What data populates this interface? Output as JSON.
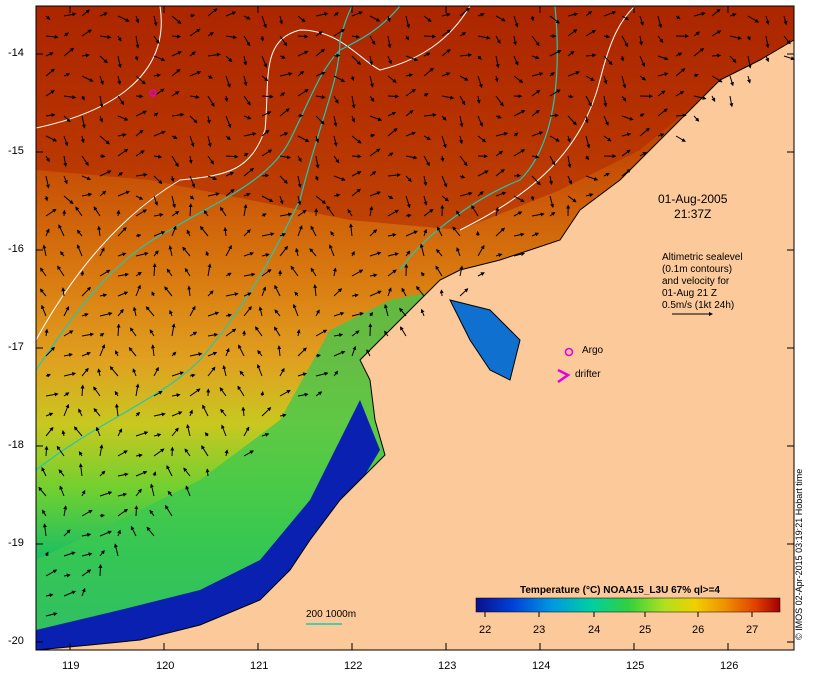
{
  "map": {
    "lon_ticks": [
      "119",
      "120",
      "121",
      "122",
      "123",
      "124",
      "125",
      "126"
    ],
    "lat_ticks": [
      "-14",
      "-15",
      "-16",
      "-17",
      "-18",
      "-19",
      "-20"
    ],
    "timestamp_line1": "01-Aug-2005",
    "timestamp_line2": "21:37Z",
    "altimetry_note": [
      "Altimetric sealevel",
      "(0.1m contours)",
      "and velocity for",
      "01-Aug 21 Z",
      "0.5m/s (1kt 24h)"
    ],
    "argo_label": "Argo",
    "drifter_label": "drifter",
    "contour_label": "200  1000m",
    "colorbar": {
      "title": "Temperature (°C) NOAA15_L3U 67% ql>=4",
      "ticks": [
        "22",
        "23",
        "24",
        "25",
        "26",
        "27"
      ],
      "colors": [
        "#0a0f8c",
        "#0040d8",
        "#0098e0",
        "#00d0a0",
        "#30d040",
        "#b0e020",
        "#f0d000",
        "#f09000",
        "#e04000",
        "#a00000"
      ]
    },
    "credit": "© IMOS 02-Apr-2015 03:19:21 Hobart time",
    "colors": {
      "land": "#fbc99a",
      "sst_warm": "#a83000",
      "sst_mid": "#d06010",
      "contour_200": "#20c8b0",
      "contour_alt": "#ffffff"
    }
  }
}
